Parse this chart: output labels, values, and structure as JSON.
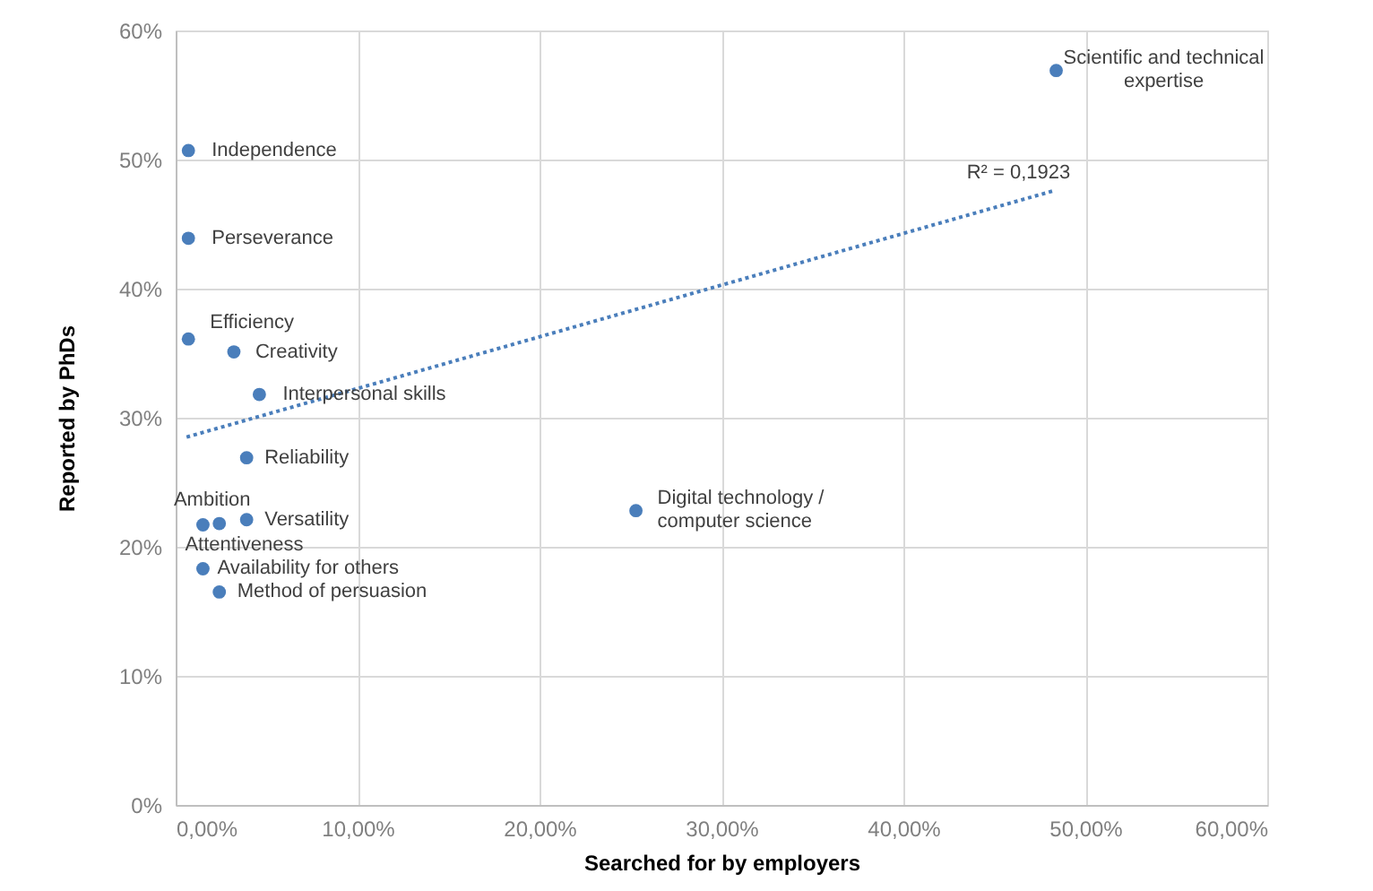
{
  "chart_data": {
    "type": "scatter",
    "xlabel": "Searched for by employers",
    "ylabel": "Reported by PhDs",
    "series": [
      {
        "color": "#4a7ebb",
        "marker": "circle",
        "x": [
          0.7,
          0.7,
          0.7,
          3.2,
          4.6,
          3.9,
          2.4,
          1.5,
          3.9,
          1.5,
          2.4,
          25.3,
          48.4
        ],
        "values": [
          50.7,
          43.9,
          36.1,
          35.1,
          31.8,
          26.9,
          21.8,
          21.7,
          22.1,
          18.3,
          16.5,
          22.8,
          56.9
        ]
      },
      {
        "type": "line",
        "color": "#4a7ebb",
        "line_style": "dotted",
        "x": [
          0.6,
          48.3
        ],
        "values": [
          28.5,
          47.6
        ]
      }
    ],
    "annotations": [
      {
        "text": "Independence",
        "x": 0.7,
        "y": 50.7
      },
      {
        "text": "Perseverance",
        "x": 0.7,
        "y": 43.9
      },
      {
        "text": "Efficiency",
        "x": 0.7,
        "y": 36.1
      },
      {
        "text": "Creativity",
        "x": 3.2,
        "y": 35.1
      },
      {
        "text": "Interpersonal skills",
        "x": 4.6,
        "y": 31.8
      },
      {
        "text": "Reliability",
        "x": 3.9,
        "y": 26.9
      },
      {
        "text": "Ambition",
        "x": 2.4,
        "y": 21.8
      },
      {
        "text": "Attentiveness",
        "x": 1.5,
        "y": 21.7
      },
      {
        "text": "Versatility",
        "x": 3.9,
        "y": 22.1
      },
      {
        "text": "Availability for others",
        "x": 1.5,
        "y": 18.3
      },
      {
        "text": "Method of persuasion",
        "x": 2.4,
        "y": 16.5
      },
      {
        "text": "Digital technology /\ncomputer science",
        "x": 25.3,
        "y": 22.8
      },
      {
        "text": "Scientific and technical\nexpertise",
        "x": 48.4,
        "y": 56.9
      },
      {
        "text": "R² = 0,1923",
        "x": 48.3,
        "y": 47.6
      }
    ],
    "xlim": [
      0,
      60
    ],
    "ylim": [
      0,
      60
    ],
    "xticks": [
      {
        "value": 0,
        "label": "0,00%"
      },
      {
        "value": 10,
        "label": "10,00%"
      },
      {
        "value": 20,
        "label": "20,00%"
      },
      {
        "value": 30,
        "label": "30,00%"
      },
      {
        "value": 40,
        "label": "40,00%"
      },
      {
        "value": 50,
        "label": "50,00%"
      },
      {
        "value": 60,
        "label": "60,00%"
      }
    ],
    "yticks": [
      {
        "value": 0,
        "label": "0%"
      },
      {
        "value": 10,
        "label": "10%"
      },
      {
        "value": 20,
        "label": "20%"
      },
      {
        "value": 30,
        "label": "30%"
      },
      {
        "value": 40,
        "label": "40%"
      },
      {
        "value": 50,
        "label": "50%"
      },
      {
        "value": 60,
        "label": "60%"
      }
    ],
    "grid": true
  }
}
